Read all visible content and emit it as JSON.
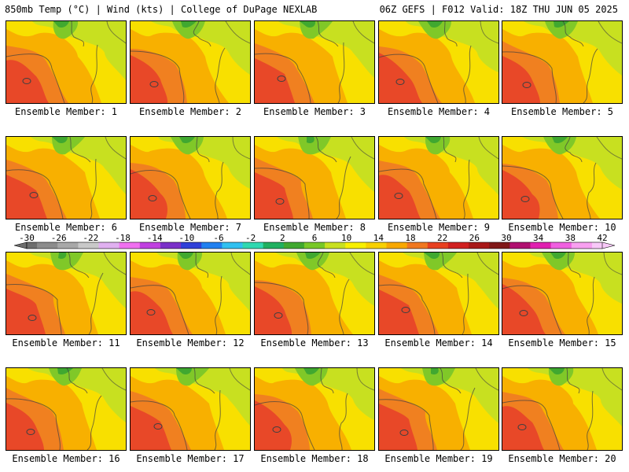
{
  "header": {
    "left": "850mb Temp (°C) | Wind (kts) | College of DuPage NEXLAB",
    "right": "06Z GEFS | F012 Valid: 18Z THU JUN 05 2025"
  },
  "colorbar": {
    "labels": [
      "-30",
      "-26",
      "-22",
      "-18",
      "-14",
      "-10",
      "-6",
      "-2",
      "2",
      "6",
      "10",
      "14",
      "18",
      "22",
      "26",
      "30",
      "34",
      "38",
      "42"
    ],
    "colors": [
      "#6e6e6e",
      "#8c8c8c",
      "#8c8c8c",
      "#a8a8a8",
      "#a8a8a8",
      "#c8c8c8",
      "#c8c8c8",
      "#e0b0f0",
      "#e0b0f0",
      "#f070f0",
      "#f070f0",
      "#c040e0",
      "#c040e0",
      "#7a30c8",
      "#7a30c8",
      "#3040d8",
      "#3040d8",
      "#2080f0",
      "#2080f0",
      "#30c0f0",
      "#30c0f0",
      "#30d8b0",
      "#30d8b0",
      "#20b060",
      "#20b060",
      "#40a830",
      "#40a830",
      "#78c828",
      "#78c828",
      "#c8e020",
      "#c8e020",
      "#f8f000",
      "#f8f000",
      "#f8d000",
      "#f8d000",
      "#f8a800",
      "#f8a800",
      "#f07820",
      "#f07820",
      "#e84020",
      "#e84020",
      "#d02020",
      "#d02020",
      "#a81818",
      "#a81818",
      "#801818",
      "#801818",
      "#b01070",
      "#b01070",
      "#e020b0",
      "#e020b0",
      "#f060e0",
      "#f060e0",
      "#f8a0f0",
      "#f8a0f0",
      "#f8c8f8"
    ]
  },
  "members": [
    {
      "label": "Ensemble Member: 1"
    },
    {
      "label": "Ensemble Member: 2"
    },
    {
      "label": "Ensemble Member: 3"
    },
    {
      "label": "Ensemble Member: 4"
    },
    {
      "label": "Ensemble Member: 5"
    },
    {
      "label": "Ensemble Member: 6"
    },
    {
      "label": "Ensemble Member: 7"
    },
    {
      "label": "Ensemble Member: 8"
    },
    {
      "label": "Ensemble Member: 9"
    },
    {
      "label": "Ensemble Member: 10"
    },
    {
      "label": "Ensemble Member: 11"
    },
    {
      "label": "Ensemble Member: 12"
    },
    {
      "label": "Ensemble Member: 13"
    },
    {
      "label": "Ensemble Member: 14"
    },
    {
      "label": "Ensemble Member: 15"
    },
    {
      "label": "Ensemble Member: 16"
    },
    {
      "label": "Ensemble Member: 17"
    },
    {
      "label": "Ensemble Member: 18"
    },
    {
      "label": "Ensemble Member: 19"
    },
    {
      "label": "Ensemble Member: 20"
    }
  ],
  "map_colors": {
    "c14": "#f8e000",
    "c18": "#f8b000",
    "c22": "#f08020",
    "c26": "#e84828",
    "c10": "#c8e020",
    "c6": "#80c828",
    "c2": "#40a830",
    "border": "#404040"
  }
}
